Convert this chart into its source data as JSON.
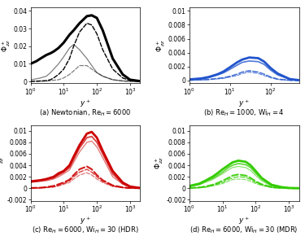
{
  "subplots": [
    {
      "label": "(a) Newtonian, $\\mathrm{Re}_H = 6000$",
      "ylim": [
        -0.001,
        0.042
      ],
      "yticks": [
        0.0,
        0.01,
        0.02,
        0.03,
        0.04
      ],
      "xlim_log": [
        1,
        2000
      ],
      "color": "black",
      "lines": [
        {
          "style": "solid",
          "lw": 2.2,
          "alpha": 1.0,
          "x": [
            1,
            1.5,
            2,
            3,
            4,
            5,
            7,
            10,
            15,
            20,
            30,
            50,
            70,
            100,
            150,
            300,
            600,
            1000,
            2000
          ],
          "y": [
            0.01,
            0.0115,
            0.013,
            0.015,
            0.016,
            0.017,
            0.019,
            0.022,
            0.0265,
            0.029,
            0.033,
            0.037,
            0.0375,
            0.036,
            0.029,
            0.013,
            0.004,
            0.001,
            0.0002
          ]
        },
        {
          "style": "dashed",
          "lw": 1.0,
          "alpha": 1.0,
          "x": [
            1,
            1.5,
            2,
            3,
            4,
            5,
            7,
            10,
            15,
            20,
            30,
            50,
            70,
            100,
            150,
            300,
            600,
            1000,
            2000
          ],
          "y": [
            0.0001,
            0.0002,
            0.0003,
            0.0005,
            0.001,
            0.002,
            0.004,
            0.007,
            0.013,
            0.02,
            0.028,
            0.033,
            0.032,
            0.027,
            0.018,
            0.007,
            0.002,
            0.0005,
            0.0001
          ]
        },
        {
          "style": "solid",
          "lw": 0.9,
          "alpha": 0.5,
          "x": [
            1,
            1.5,
            2,
            3,
            4,
            5,
            7,
            10,
            15,
            20,
            30,
            50,
            70,
            100,
            150,
            300,
            600,
            1000,
            2000
          ],
          "y": [
            0.001,
            0.0015,
            0.002,
            0.003,
            0.005,
            0.007,
            0.01,
            0.014,
            0.019,
            0.021,
            0.018,
            0.013,
            0.009,
            0.005,
            0.003,
            0.001,
            0.0003,
            0.0001,
            2e-05
          ]
        },
        {
          "style": "dashed",
          "lw": 0.9,
          "alpha": 0.5,
          "x": [
            1,
            1.5,
            2,
            3,
            4,
            5,
            7,
            10,
            15,
            20,
            30,
            50,
            70,
            100,
            150,
            300,
            600,
            1000,
            2000
          ],
          "y": [
            5e-05,
            8e-05,
            0.0001,
            0.0002,
            0.0004,
            0.0007,
            0.001,
            0.002,
            0.004,
            0.006,
            0.009,
            0.009,
            0.007,
            0.005,
            0.003,
            0.001,
            0.0003,
            0.0001,
            2e-05
          ]
        }
      ]
    },
    {
      "label": "(b) $\\mathrm{Re}_H = 1000$, $\\mathrm{Wi}_H = 4$",
      "ylim": [
        -0.0004,
        0.0105
      ],
      "yticks": [
        0.0,
        0.002,
        0.004,
        0.006,
        0.008,
        0.01
      ],
      "xlim_log": [
        1,
        500
      ],
      "color": "#2255cc",
      "lines": [
        {
          "style": "solid",
          "lw": 2.0,
          "alpha": 1.0,
          "x": [
            1,
            2,
            3,
            5,
            7,
            10,
            15,
            20,
            30,
            50,
            70,
            100,
            150,
            300,
            500
          ],
          "y": [
            0.00015,
            0.0003,
            0.0005,
            0.0009,
            0.0013,
            0.0019,
            0.0026,
            0.003,
            0.0033,
            0.0032,
            0.0027,
            0.0018,
            0.001,
            0.0002,
            5e-05
          ]
        },
        {
          "style": "solid",
          "lw": 1.2,
          "alpha": 0.8,
          "x": [
            1,
            2,
            3,
            5,
            7,
            10,
            15,
            20,
            30,
            50,
            70,
            100,
            150,
            300,
            500
          ],
          "y": [
            0.00012,
            0.00025,
            0.0004,
            0.0008,
            0.0011,
            0.0016,
            0.0022,
            0.0026,
            0.0028,
            0.0027,
            0.0023,
            0.0015,
            0.0008,
            0.00015,
            3e-05
          ]
        },
        {
          "style": "dashed",
          "lw": 1.2,
          "alpha": 0.8,
          "x": [
            1,
            2,
            3,
            5,
            7,
            10,
            15,
            20,
            30,
            50,
            70,
            100,
            150,
            300,
            500
          ],
          "y": [
            5e-05,
            0.0001,
            0.00015,
            0.0003,
            0.0004,
            0.0006,
            0.0009,
            0.0012,
            0.0014,
            0.0012,
            0.0009,
            0.0005,
            0.0002,
            3e-05,
            5e-06
          ]
        },
        {
          "style": "dashed",
          "lw": 0.9,
          "alpha": 0.65,
          "x": [
            1,
            2,
            3,
            5,
            7,
            10,
            15,
            20,
            30,
            50,
            70,
            100,
            150,
            300,
            500
          ],
          "y": [
            3e-05,
            8e-05,
            0.00012,
            0.00022,
            0.0003,
            0.0005,
            0.0007,
            0.001,
            0.0012,
            0.001,
            0.0007,
            0.0004,
            0.00015,
            2e-05,
            3e-06
          ]
        }
      ]
    },
    {
      "label": "(c) $\\mathrm{Re}_H = 6000$, $\\mathrm{Wi}_H = 30$ (HDR)",
      "ylim": [
        -0.0022,
        0.011
      ],
      "yticks": [
        -0.002,
        0.0,
        0.002,
        0.004,
        0.006,
        0.008,
        0.01
      ],
      "xlim_log": [
        1,
        2000
      ],
      "color": "#cc0000",
      "lines": [
        {
          "style": "solid",
          "lw": 2.0,
          "alpha": 1.0,
          "x": [
            1,
            2,
            3,
            5,
            7,
            10,
            15,
            20,
            30,
            50,
            70,
            100,
            150,
            300,
            600,
            1000,
            2000
          ],
          "y": [
            0.0012,
            0.0014,
            0.0016,
            0.002,
            0.0026,
            0.003,
            0.004,
            0.0055,
            0.0075,
            0.0095,
            0.0098,
            0.0088,
            0.0065,
            0.003,
            0.001,
            0.0003,
            5e-05
          ]
        },
        {
          "style": "solid",
          "lw": 1.3,
          "alpha": 0.75,
          "x": [
            1,
            2,
            3,
            5,
            7,
            10,
            15,
            20,
            30,
            50,
            70,
            100,
            150,
            300,
            600,
            1000,
            2000
          ],
          "y": [
            0.0011,
            0.0013,
            0.0015,
            0.0018,
            0.0023,
            0.0028,
            0.0036,
            0.005,
            0.007,
            0.0088,
            0.009,
            0.008,
            0.006,
            0.0025,
            0.0008,
            0.00025,
            4e-05
          ]
        },
        {
          "style": "solid",
          "lw": 0.9,
          "alpha": 0.55,
          "x": [
            1,
            2,
            3,
            5,
            7,
            10,
            15,
            20,
            30,
            50,
            70,
            100,
            150,
            300,
            600,
            1000,
            2000
          ],
          "y": [
            0.001,
            0.0012,
            0.0013,
            0.0016,
            0.002,
            0.0025,
            0.0032,
            0.0045,
            0.0063,
            0.008,
            0.0082,
            0.0072,
            0.0053,
            0.002,
            0.0007,
            0.0002,
            3e-05
          ]
        },
        {
          "style": "dashed",
          "lw": 1.5,
          "alpha": 0.9,
          "x": [
            1,
            2,
            3,
            5,
            7,
            10,
            15,
            20,
            30,
            50,
            70,
            100,
            150,
            300,
            600,
            1000,
            2000
          ],
          "y": [
            5e-05,
            0.0001,
            0.0002,
            0.0004,
            0.0007,
            0.001,
            0.0015,
            0.0023,
            0.0033,
            0.0038,
            0.0033,
            0.0023,
            0.0014,
            0.0005,
            0.00015,
            4e-05,
            5e-06
          ]
        },
        {
          "style": "dashed",
          "lw": 1.1,
          "alpha": 0.7,
          "x": [
            1,
            2,
            3,
            5,
            7,
            10,
            15,
            20,
            30,
            50,
            70,
            100,
            150,
            300,
            600,
            1000,
            2000
          ],
          "y": [
            3e-05,
            7e-05,
            0.00015,
            0.0003,
            0.0005,
            0.0008,
            0.0013,
            0.002,
            0.0028,
            0.0033,
            0.0028,
            0.002,
            0.0012,
            0.0004,
            0.00012,
            3e-05,
            4e-06
          ]
        },
        {
          "style": "dashed",
          "lw": 0.9,
          "alpha": 0.55,
          "x": [
            1,
            2,
            3,
            5,
            7,
            10,
            15,
            20,
            30,
            50,
            70,
            100,
            150,
            300,
            600,
            1000,
            2000
          ],
          "y": [
            2e-05,
            5e-05,
            0.0001,
            0.0002,
            0.0004,
            0.0007,
            0.001,
            0.0016,
            0.0023,
            0.0027,
            0.0023,
            0.0016,
            0.001,
            0.0003,
            0.0001,
            2e-05,
            3e-06
          ]
        }
      ]
    },
    {
      "label": "(d) $\\mathrm{Re}_H = 6000$, $\\mathrm{Wi}_H = 30$ (MDR)",
      "ylim": [
        -0.0022,
        0.011
      ],
      "yticks": [
        -0.002,
        0.0,
        0.002,
        0.004,
        0.006,
        0.008,
        0.01
      ],
      "xlim_log": [
        1,
        2000
      ],
      "color": "#33cc00",
      "lines": [
        {
          "style": "solid",
          "lw": 2.0,
          "alpha": 1.0,
          "x": [
            1,
            2,
            3,
            5,
            7,
            10,
            15,
            20,
            30,
            50,
            70,
            100,
            150,
            300,
            600,
            1000,
            2000
          ],
          "y": [
            0.0004,
            0.0008,
            0.0013,
            0.002,
            0.0026,
            0.0033,
            0.004,
            0.0045,
            0.0048,
            0.0046,
            0.004,
            0.003,
            0.0018,
            0.0006,
            0.0002,
            5e-05,
            1e-05
          ]
        },
        {
          "style": "solid",
          "lw": 1.3,
          "alpha": 0.75,
          "x": [
            1,
            2,
            3,
            5,
            7,
            10,
            15,
            20,
            30,
            50,
            70,
            100,
            150,
            300,
            600,
            1000,
            2000
          ],
          "y": [
            0.00035,
            0.0007,
            0.0012,
            0.0017,
            0.0022,
            0.0028,
            0.0036,
            0.004,
            0.0043,
            0.0041,
            0.0036,
            0.0026,
            0.0016,
            0.0005,
            0.00015,
            4e-05,
            8e-06
          ]
        },
        {
          "style": "solid",
          "lw": 0.9,
          "alpha": 0.55,
          "x": [
            1,
            2,
            3,
            5,
            7,
            10,
            15,
            20,
            30,
            50,
            70,
            100,
            150,
            300,
            600,
            1000,
            2000
          ],
          "y": [
            0.0003,
            0.0006,
            0.001,
            0.0015,
            0.002,
            0.0025,
            0.0032,
            0.0036,
            0.0038,
            0.0036,
            0.0031,
            0.0022,
            0.0013,
            0.0004,
            0.00012,
            3e-05,
            6e-06
          ]
        },
        {
          "style": "dashed",
          "lw": 1.5,
          "alpha": 0.9,
          "x": [
            1,
            2,
            3,
            5,
            7,
            10,
            15,
            20,
            30,
            50,
            70,
            100,
            150,
            300,
            600,
            1000,
            2000
          ],
          "y": [
            5e-05,
            0.00015,
            0.0003,
            0.0006,
            0.0009,
            0.0013,
            0.0018,
            0.0022,
            0.0024,
            0.0022,
            0.0018,
            0.0012,
            0.0007,
            0.0002,
            5e-05,
            1e-05,
            2e-06
          ]
        },
        {
          "style": "dashed",
          "lw": 1.1,
          "alpha": 0.7,
          "x": [
            1,
            2,
            3,
            5,
            7,
            10,
            15,
            20,
            30,
            50,
            70,
            100,
            150,
            300,
            600,
            1000,
            2000
          ],
          "y": [
            3e-05,
            0.0001,
            0.0002,
            0.0005,
            0.0007,
            0.001,
            0.0015,
            0.0018,
            0.002,
            0.0019,
            0.0015,
            0.001,
            0.0006,
            0.00015,
            4e-05,
            8e-06,
            1e-06
          ]
        },
        {
          "style": "dashed",
          "lw": 0.9,
          "alpha": 0.55,
          "x": [
            1,
            2,
            3,
            5,
            7,
            10,
            15,
            20,
            30,
            50,
            70,
            100,
            150,
            300,
            600,
            1000,
            2000
          ],
          "y": [
            2e-05,
            8e-05,
            0.00015,
            0.0004,
            0.0006,
            0.0008,
            0.0012,
            0.0015,
            0.0016,
            0.0015,
            0.0012,
            0.0008,
            0.0005,
            0.00012,
            3e-05,
            6e-06,
            8e-07
          ]
        }
      ]
    }
  ],
  "ylabel": "$\\Phi^+_{zz}$",
  "xlabel": "$y^+$",
  "background_color": "white",
  "tick_labelsize": 5.5,
  "label_fontsize": 6.5,
  "caption_fontsize": 6.0
}
